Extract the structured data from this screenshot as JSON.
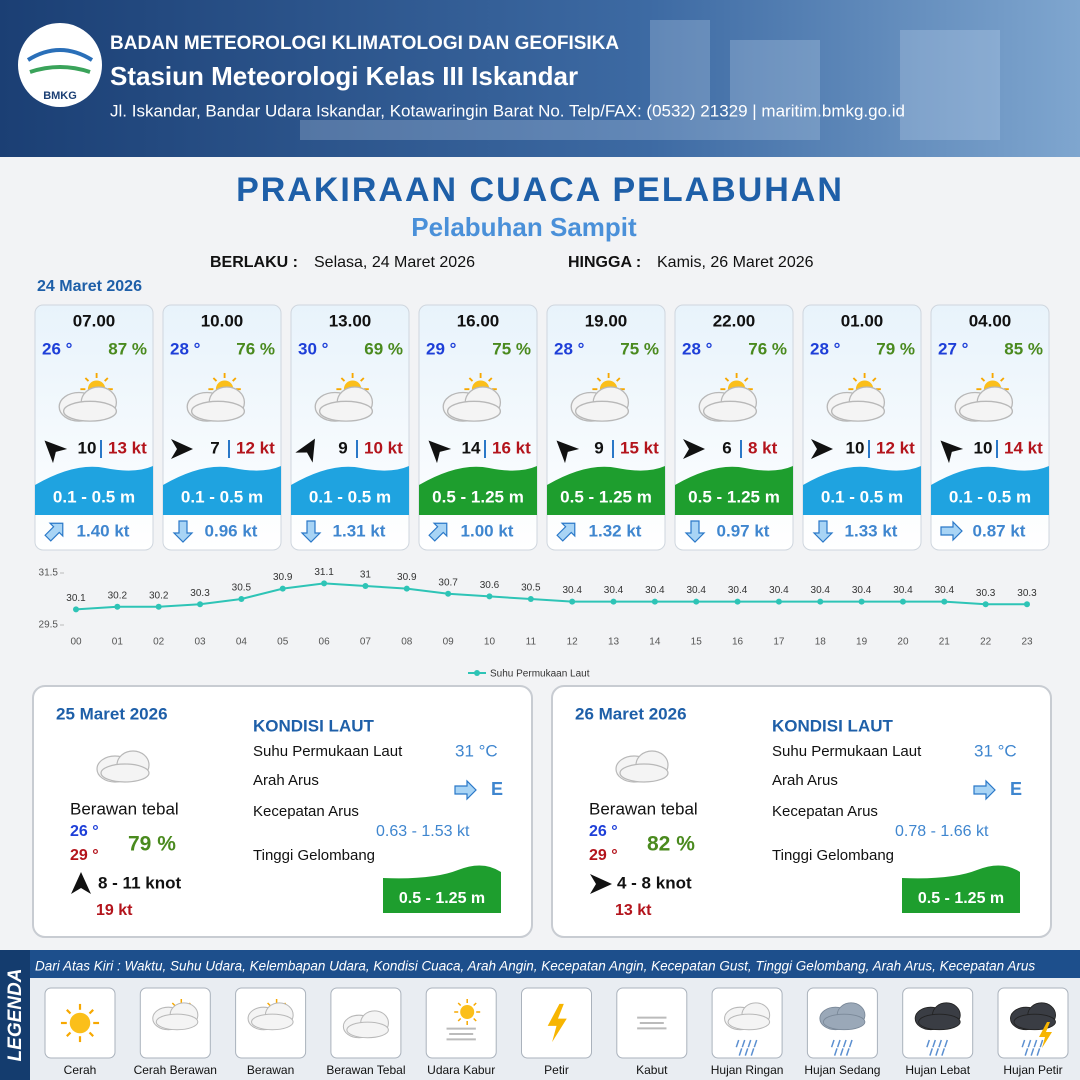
{
  "header": {
    "logo_text": "BMKG",
    "org": "BADAN METEOROLOGI KLIMATOLOGI DAN GEOFISIKA",
    "station": "Stasiun Meteorologi Kelas III Iskandar",
    "address": "Jl. Iskandar, Bandar Udara Iskandar, Kotawaringin Barat No. Telp/FAX: (0532) 21329 | maritim.bmkg.go.id"
  },
  "title": "PRAKIRAAN CUACA PELABUHAN",
  "subtitle": "Pelabuhan Sampit",
  "valid_from_label": "BERLAKU :",
  "valid_from": "Selasa, 24 Maret 2026",
  "valid_to_label": "HINGGA :",
  "valid_to": "Kamis, 26 Maret 2026",
  "day1_label": "24 Maret 2026",
  "forecasts": [
    {
      "time": "07.00",
      "temp": "26 °",
      "humidity": "87 %",
      "wind": "10",
      "gust": "13 kt",
      "wave": "0.1 - 0.5 m",
      "wave_color": "#1fa3e0",
      "current": "1.40 kt"
    },
    {
      "time": "10.00",
      "temp": "28 °",
      "humidity": "76 %",
      "wind": "7",
      "gust": "12 kt",
      "wave": "0.1 - 0.5 m",
      "wave_color": "#1fa3e0",
      "current": "0.96 kt"
    },
    {
      "time": "13.00",
      "temp": "30 °",
      "humidity": "69 %",
      "wind": "9",
      "gust": "10 kt",
      "wave": "0.1 - 0.5 m",
      "wave_color": "#1fa3e0",
      "current": "1.31 kt"
    },
    {
      "time": "16.00",
      "temp": "29 °",
      "humidity": "75 %",
      "wind": "14",
      "gust": "16 kt",
      "wave": "0.5 - 1.25 m",
      "wave_color": "#1e9e2e",
      "current": "1.00 kt"
    },
    {
      "time": "19.00",
      "temp": "28 °",
      "humidity": "75 %",
      "wind": "9",
      "gust": "15 kt",
      "wave": "0.5 - 1.25 m",
      "wave_color": "#1e9e2e",
      "current": "1.32 kt"
    },
    {
      "time": "22.00",
      "temp": "28 °",
      "humidity": "76 %",
      "wind": "6",
      "gust": "8 kt",
      "wave": "0.5 - 1.25 m",
      "wave_color": "#1e9e2e",
      "current": "0.97 kt"
    },
    {
      "time": "01.00",
      "temp": "28 °",
      "humidity": "79 %",
      "wind": "10",
      "gust": "12 kt",
      "wave": "0.1 - 0.5 m",
      "wave_color": "#1fa3e0",
      "current": "1.33 kt"
    },
    {
      "time": "04.00",
      "temp": "27 °",
      "humidity": "85 %",
      "wind": "10",
      "gust": "14 kt",
      "wave": "0.1 - 0.5 m",
      "wave_color": "#1fa3e0",
      "current": "0.87 kt"
    }
  ],
  "chart_data": {
    "type": "line",
    "categories": [
      "00",
      "01",
      "02",
      "03",
      "04",
      "05",
      "06",
      "07",
      "08",
      "09",
      "10",
      "11",
      "12",
      "13",
      "14",
      "15",
      "16",
      "17",
      "18",
      "19",
      "20",
      "21",
      "22",
      "23"
    ],
    "series": [
      {
        "name": "Suhu Permukaan Laut",
        "color": "#2ec4b6",
        "values": [
          30.1,
          30.2,
          30.2,
          30.3,
          30.5,
          30.9,
          31.1,
          31.0,
          30.9,
          30.7,
          30.6,
          30.5,
          30.4,
          30.4,
          30.4,
          30.4,
          30.4,
          30.4,
          30.4,
          30.4,
          30.4,
          30.4,
          30.3,
          30.3
        ]
      }
    ],
    "ylim": [
      29.5,
      31.5
    ],
    "yticks": [
      29.5,
      31.5
    ],
    "legend": "bottom"
  },
  "days": [
    {
      "date": "25 Maret 2026",
      "condition": "Berawan tebal",
      "temp_min": "26 °",
      "temp_max": "29 °",
      "humidity": "79 %",
      "wind": "8  - 11 knot",
      "gust": "19 kt",
      "sea_heading": "KONDISI LAUT",
      "sst_label": "Suhu Permukaan Laut",
      "sst": "31 °C",
      "current_dir_label": "Arah Arus",
      "current_dir": "E",
      "current_speed_label": "Kecepatan Arus",
      "current_speed": "0.63  - 1.53 kt",
      "wave_label": "Tinggi Gelombang",
      "wave": "0.5 - 1.25 m"
    },
    {
      "date": "26 Maret 2026",
      "condition": "Berawan tebal",
      "temp_min": "26 °",
      "temp_max": "29 °",
      "humidity": "82 %",
      "wind": "4  - 8 knot",
      "gust": "13 kt",
      "sea_heading": "KONDISI LAUT",
      "sst_label": "Suhu Permukaan Laut",
      "sst": "31 °C",
      "current_dir_label": "Arah Arus",
      "current_dir": "E",
      "current_speed_label": "Kecepatan Arus",
      "current_speed": "0.78  - 1.66 kt",
      "wave_label": "Tinggi Gelombang",
      "wave": "0.5 - 1.25 m"
    }
  ],
  "legend": {
    "title": "LEGENDA",
    "description": "Dari Atas Kiri : Waktu, Suhu Udara, Kelembapan Udara, Kondisi Cuaca, Arah Angin, Kecepatan Angin, Kecepatan Gust, Tinggi Gelombang, Arah Arus, Kecepatan Arus",
    "items": [
      "Cerah",
      "Cerah Berawan",
      "Berawan",
      "Berawan Tebal",
      "Udara Kabur",
      "Petir",
      "Kabut",
      "Hujan Ringan",
      "Hujan Sedang",
      "Hujan Lebat",
      "Hujan Petir"
    ]
  }
}
